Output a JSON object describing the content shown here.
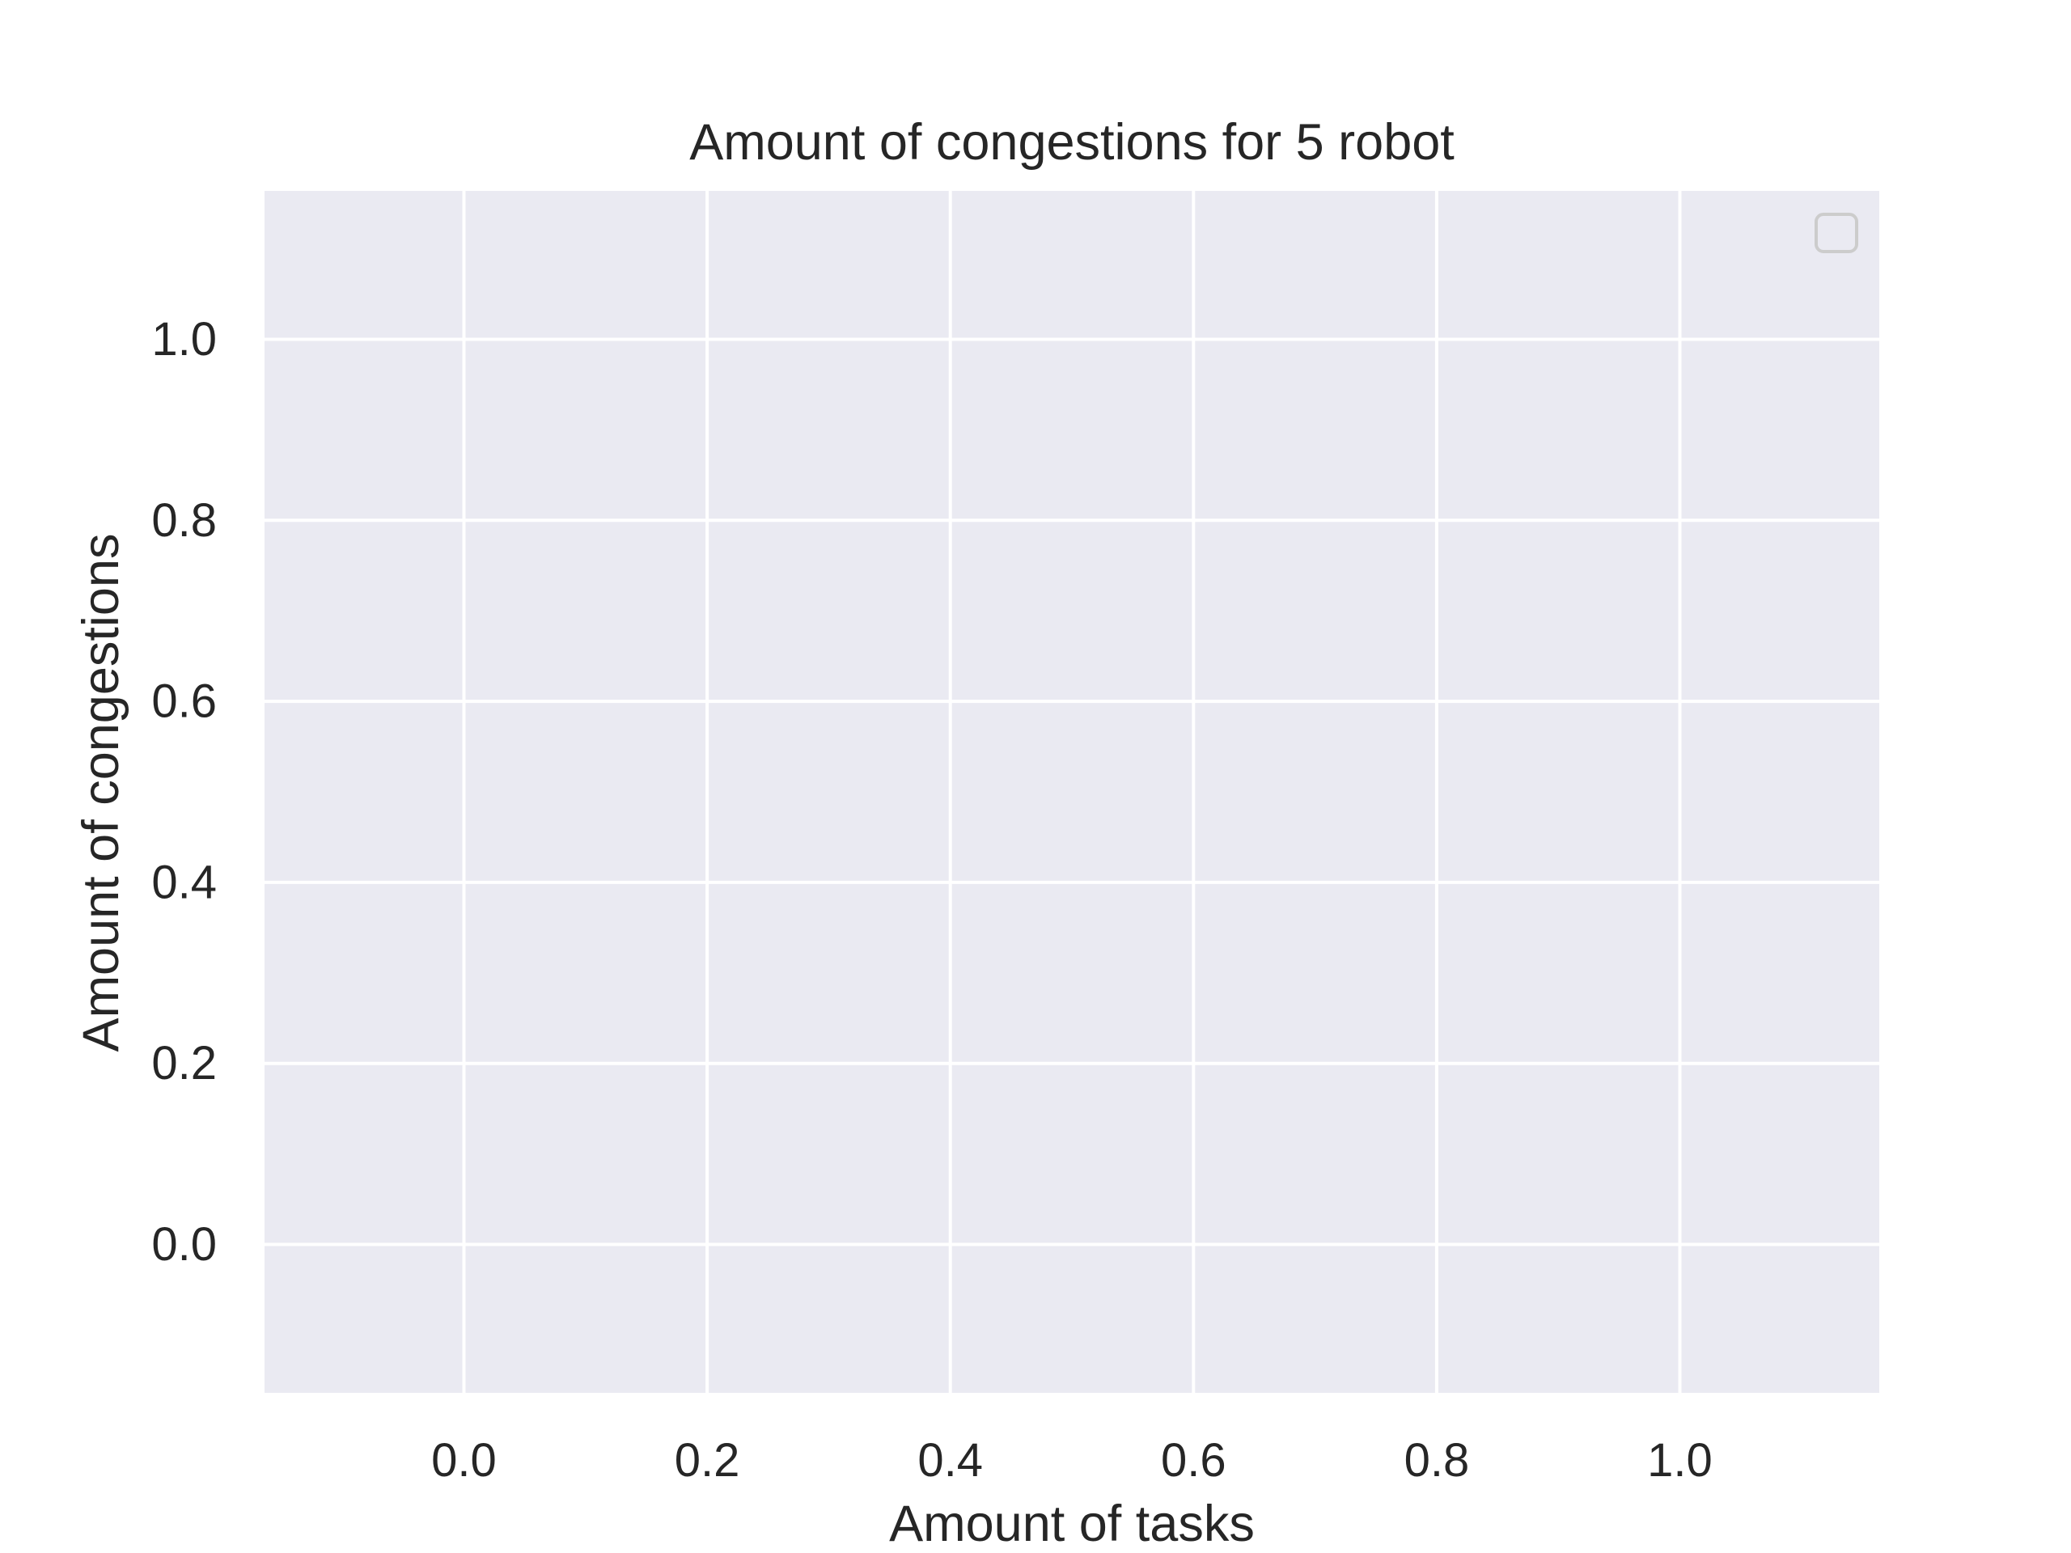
{
  "chart_data": {
    "type": "line",
    "title": "Amount of congestions for 5 robot",
    "xlabel": "Amount of tasks",
    "ylabel": "Amount of congestions",
    "xlim": [
      -0.164,
      1.164
    ],
    "ylim": [
      -0.164,
      1.164
    ],
    "x_ticks": [
      0.0,
      0.2,
      0.4,
      0.6,
      0.8,
      1.0
    ],
    "x_tick_labels": [
      "0.0",
      "0.2",
      "0.4",
      "0.6",
      "0.8",
      "1.0"
    ],
    "y_ticks": [
      0.0,
      0.2,
      0.4,
      0.6,
      0.8,
      1.0
    ],
    "y_tick_labels": [
      "0.0",
      "0.2",
      "0.4",
      "0.6",
      "0.8",
      "1.0"
    ],
    "series": [],
    "grid": true,
    "legend": {
      "position": "upper-right",
      "entries": []
    },
    "colors": {
      "plot_background": "#eaeaf2",
      "grid": "#ffffff",
      "text": "#262626",
      "legend_border": "#cccccc"
    }
  }
}
